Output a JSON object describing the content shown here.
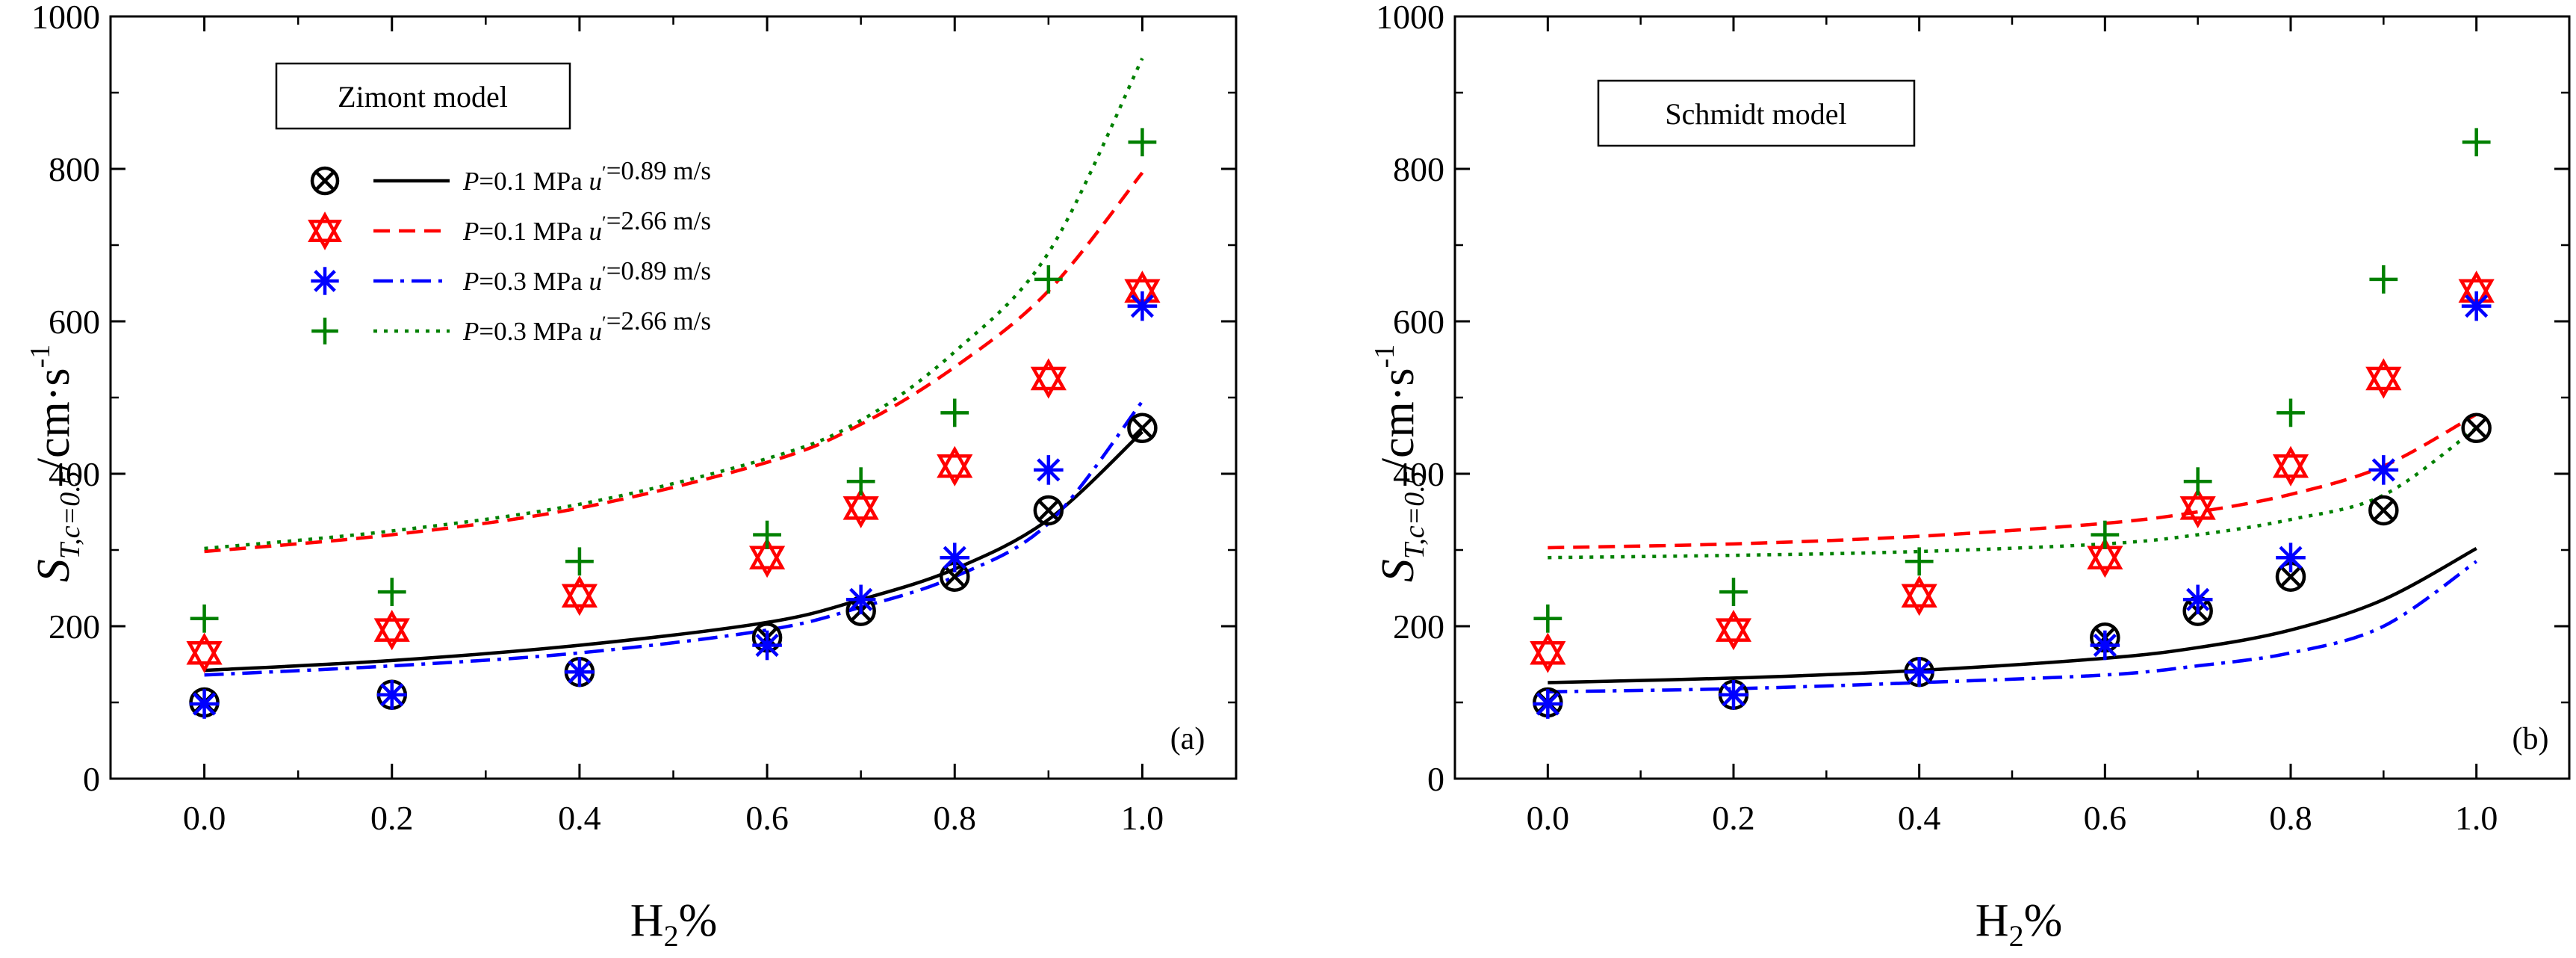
{
  "figure": {
    "shared": {
      "xlabel_main": "H",
      "xlabel_sub": "2",
      "xlabel_tail": "%",
      "ylabel_main": "S",
      "ylabel_sub": "T,c=0.5",
      "ylabel_unit": "/cm·s",
      "ylabel_sup": "-1",
      "xticks": [
        "0.0",
        "0.2",
        "0.4",
        "0.6",
        "0.8",
        "1.0"
      ],
      "yticks": [
        "0",
        "200",
        "400",
        "600",
        "800",
        "1000"
      ],
      "xlim": [
        -0.1,
        1.1
      ],
      "ylim": [
        0,
        1000
      ],
      "legend": [
        {
          "p_sym": "P",
          "p_val": "=0.1 MPa ",
          "u_sym": "u",
          "u_prime": "′",
          "u_val": "=0.89 m/s",
          "marker": "circle-x",
          "color": "#000000",
          "line": "solid"
        },
        {
          "p_sym": "P",
          "p_val": "=0.1 MPa ",
          "u_sym": "u",
          "u_prime": "′",
          "u_val": "=2.66 m/s",
          "marker": "triangle-x",
          "color": "#ff0000",
          "line": "dashed"
        },
        {
          "p_sym": "P",
          "p_val": "=0.3 MPa ",
          "u_sym": "u",
          "u_prime": "′",
          "u_val": "=0.89 m/s",
          "marker": "asterisk",
          "color": "#0000ff",
          "line": "dashdot"
        },
        {
          "p_sym": "P",
          "p_val": "=0.3 MPa ",
          "u_sym": "u",
          "u_prime": "′",
          "u_val": "=2.66 m/s",
          "marker": "plus",
          "color": "#008000",
          "line": "dotted"
        }
      ]
    }
  },
  "chart_data": [
    {
      "type": "scatter",
      "title": "Zimont model",
      "panel_label": "(a)",
      "xlabel": "H2%",
      "ylabel": "S_T,c=0.5 /cm·s^-1",
      "x": [
        0.0,
        0.2,
        0.4,
        0.6,
        0.7,
        0.8,
        0.9,
        1.0
      ],
      "series": [
        {
          "name": "P=0.1 MPa u'=0.89 m/s (exp)",
          "values": [
            100,
            110,
            140,
            185,
            220,
            265,
            352,
            460
          ]
        },
        {
          "name": "P=0.1 MPa u'=2.66 m/s (exp)",
          "values": [
            165,
            195,
            240,
            290,
            355,
            410,
            525,
            640
          ]
        },
        {
          "name": "P=0.3 MPa u'=0.89 m/s (exp)",
          "values": [
            98,
            110,
            140,
            175,
            235,
            290,
            405,
            620
          ]
        },
        {
          "name": "P=0.3 MPa u'=2.66 m/s (exp)",
          "values": [
            210,
            245,
            285,
            320,
            390,
            480,
            655,
            835
          ]
        }
      ],
      "model_curves": {
        "x": [
          0.0,
          0.2,
          0.4,
          0.6,
          0.7,
          0.8,
          0.9,
          1.0
        ],
        "series": [
          {
            "name": "P=0.1 MPa u'=0.89 m/s (model)",
            "values": [
              142,
              155,
              175,
              205,
              235,
              275,
              340,
              455
            ]
          },
          {
            "name": "P=0.1 MPa u'=2.66 m/s (model)",
            "values": [
              298,
              320,
              355,
              415,
              465,
              540,
              640,
              795
            ]
          },
          {
            "name": "P=0.3 MPa u'=0.89 m/s (model)",
            "values": [
              136,
              148,
              165,
              195,
              225,
              265,
              335,
              495
            ]
          },
          {
            "name": "P=0.3 MPa u'=2.66 m/s (model)",
            "values": [
              302,
              325,
              360,
              420,
              470,
              560,
              690,
              945
            ]
          }
        ]
      }
    },
    {
      "type": "scatter",
      "title": "Schmidt model",
      "panel_label": "(b)",
      "xlabel": "H2%",
      "ylabel": "S_T,c=0.5 /cm·s^-1",
      "x": [
        0.0,
        0.2,
        0.4,
        0.6,
        0.7,
        0.8,
        0.9,
        1.0
      ],
      "series": [
        {
          "name": "P=0.1 MPa u'=0.89 m/s (exp)",
          "values": [
            100,
            110,
            140,
            185,
            220,
            265,
            352,
            460
          ]
        },
        {
          "name": "P=0.1 MPa u'=2.66 m/s (exp)",
          "values": [
            165,
            195,
            240,
            290,
            355,
            410,
            525,
            640
          ]
        },
        {
          "name": "P=0.3 MPa u'=0.89 m/s (exp)",
          "values": [
            98,
            110,
            140,
            175,
            235,
            290,
            405,
            620
          ]
        },
        {
          "name": "P=0.3 MPa u'=2.66 m/s (exp)",
          "values": [
            210,
            245,
            285,
            320,
            390,
            480,
            655,
            835
          ]
        }
      ],
      "model_curves": {
        "x": [
          0.0,
          0.2,
          0.4,
          0.6,
          0.7,
          0.8,
          0.9,
          1.0
        ],
        "series": [
          {
            "name": "P=0.1 MPa u'=0.89 m/s (model)",
            "values": [
              126,
              132,
              142,
              158,
              172,
              195,
              235,
              302
            ]
          },
          {
            "name": "P=0.1 MPa u'=2.66 m/s (model)",
            "values": [
              303,
              308,
              318,
              335,
              350,
              373,
              410,
              478
            ]
          },
          {
            "name": "P=0.3 MPa u'=0.89 m/s (model)",
            "values": [
              114,
              118,
              126,
              136,
              148,
              165,
              200,
              285
            ]
          },
          {
            "name": "P=0.3 MPa u'=2.66 m/s (model)",
            "values": [
              290,
              293,
              298,
              308,
              320,
              340,
              372,
              460
            ]
          }
        ]
      }
    }
  ]
}
